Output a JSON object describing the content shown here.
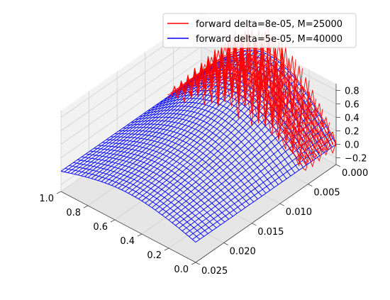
{
  "chart_data": {
    "type": "surface3d",
    "title": "",
    "xlabel": "",
    "ylabel": "",
    "zlabel": "",
    "x_axis": {
      "ticks": [
        0.0,
        0.2,
        0.4,
        0.6,
        0.8,
        1.0
      ],
      "tick_labels": [
        "0.0",
        "0.2",
        "0.4",
        "0.6",
        "0.8",
        "1.0"
      ],
      "range": [
        0.0,
        1.0
      ]
    },
    "y_axis": {
      "ticks": [
        0.0,
        0.005,
        0.01,
        0.015,
        0.02,
        0.025
      ],
      "tick_labels": [
        "0.000",
        "0.005",
        "0.010",
        "0.015",
        "0.020",
        "0.025"
      ],
      "range": [
        0.0,
        0.025
      ]
    },
    "z_axis": {
      "ticks": [
        -0.2,
        0.0,
        0.2,
        0.4,
        0.6,
        0.8
      ],
      "tick_labels": [
        "−0.2",
        "0.0",
        "0.2",
        "0.4",
        "0.6",
        "0.8"
      ],
      "range": [
        -0.3,
        0.9
      ]
    },
    "grid": true,
    "legend_position": "top-right",
    "series": [
      {
        "name": "forward delta=8e-05, M=25000",
        "color": "#ff0000",
        "style": "wireframe",
        "t_range": [
          0.0,
          0.025
        ],
        "x_range": [
          0.0,
          1.0
        ],
        "behaviour": "unstable oscillations, amplitude about 0.3"
      },
      {
        "name": "forward delta=5e-05, M=40000",
        "color": "#0000ff",
        "style": "wireframe",
        "t_range": [
          0.0,
          0.025
        ],
        "x_range": [
          0.0,
          1.0
        ],
        "initial_peak": 0.8,
        "final_peak": 0.2
      }
    ]
  }
}
